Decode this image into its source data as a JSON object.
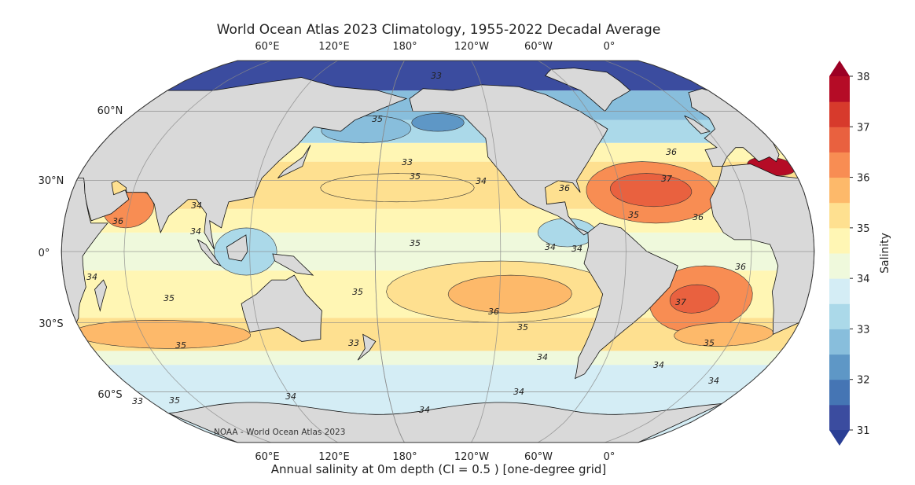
{
  "title": "World Ocean Atlas 2023 Climatology, 1955-2022 Decadal Average",
  "xlabel": "Annual salinity at 0m depth (CI = 0.5 ) [one-degree grid]",
  "credit": "NOAA - World Ocean Atlas 2023",
  "map": {
    "projection": "Robinson",
    "central_longitude": -150,
    "lon_labels": [
      "60°E",
      "120°E",
      "180°",
      "120°W",
      "60°W",
      "0°"
    ],
    "lat_labels": [
      "60°N",
      "30°N",
      "0°",
      "30°S",
      "60°S"
    ],
    "land_color": "#d9d9d9",
    "contour_labels": [
      "35",
      "34",
      "33",
      "36",
      "37",
      "36",
      "35",
      "36",
      "36",
      "35",
      "34",
      "34",
      "36",
      "37",
      "35",
      "35",
      "36",
      "35",
      "35",
      "35",
      "34",
      "34",
      "34",
      "34",
      "34",
      "34",
      "34",
      "35",
      "33",
      "33",
      "34",
      "35",
      "34",
      "33"
    ]
  },
  "colorbar": {
    "label": "Salinity",
    "min": 31,
    "max": 38,
    "step": 0.5,
    "ticks": [
      "31",
      "32",
      "33",
      "34",
      "35",
      "36",
      "37",
      "38"
    ],
    "colors": [
      "#3b4c9f",
      "#4575b4",
      "#5e97c6",
      "#88bedc",
      "#abd9e9",
      "#d4edf5",
      "#eff9dc",
      "#fff6b4",
      "#fee090",
      "#fdb96a",
      "#f88d53",
      "#e9613f",
      "#d73a2c",
      "#b50c26"
    ],
    "extend_low_color": "#2a3f95",
    "extend_high_color": "#9c0024"
  }
}
